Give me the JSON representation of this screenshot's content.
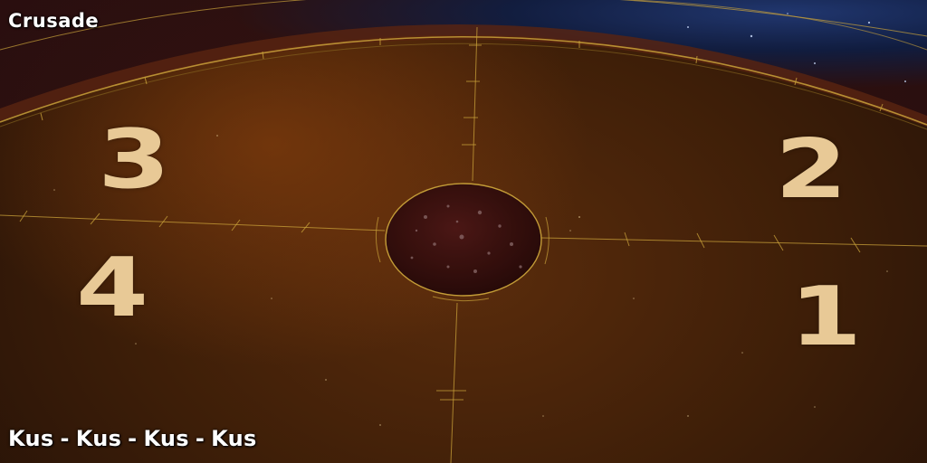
{
  "map": {
    "title": "Crusade"
  },
  "matchup": {
    "players": [
      "Kus",
      "Kus",
      "Kus",
      "Kus"
    ],
    "separator": "-"
  },
  "start_positions": {
    "top_left": "3",
    "top_right": "2",
    "bottom_left": "4",
    "bottom_right": "1"
  },
  "colors": {
    "ring_line": "#c9a23a",
    "number": "#e8c996",
    "space": "#0b1b3f",
    "center_pit": "#2a0a08"
  }
}
